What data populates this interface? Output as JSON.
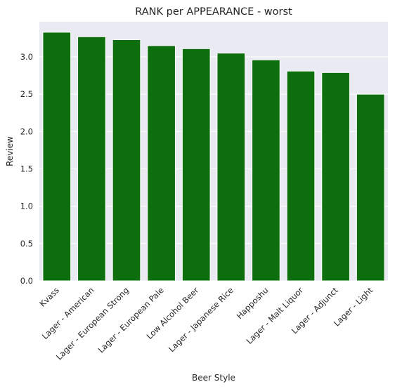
{
  "chart_data": {
    "type": "bar",
    "title": "RANK per APPEARANCE - worst",
    "xlabel": "Beer Style",
    "ylabel": "Review",
    "categories": [
      "Kvass",
      "Lager - American",
      "Lager - European Strong",
      "Lager - European Pale",
      "Low Alcohol Beer",
      "Lager - Japanese Rice",
      "Happoshu",
      "Lager - Malt Liquor",
      "Lager - Adjunct",
      "Lager - Light"
    ],
    "values": [
      3.33,
      3.27,
      3.23,
      3.15,
      3.11,
      3.05,
      2.96,
      2.81,
      2.79,
      2.5
    ],
    "ylim": [
      0,
      3.47
    ],
    "yticks": [
      "0.0",
      "0.5",
      "1.0",
      "1.5",
      "2.0",
      "2.5",
      "3.0"
    ],
    "grid": true,
    "bar_color": "#0d6e0d",
    "background_color": "#eaeaf2"
  }
}
